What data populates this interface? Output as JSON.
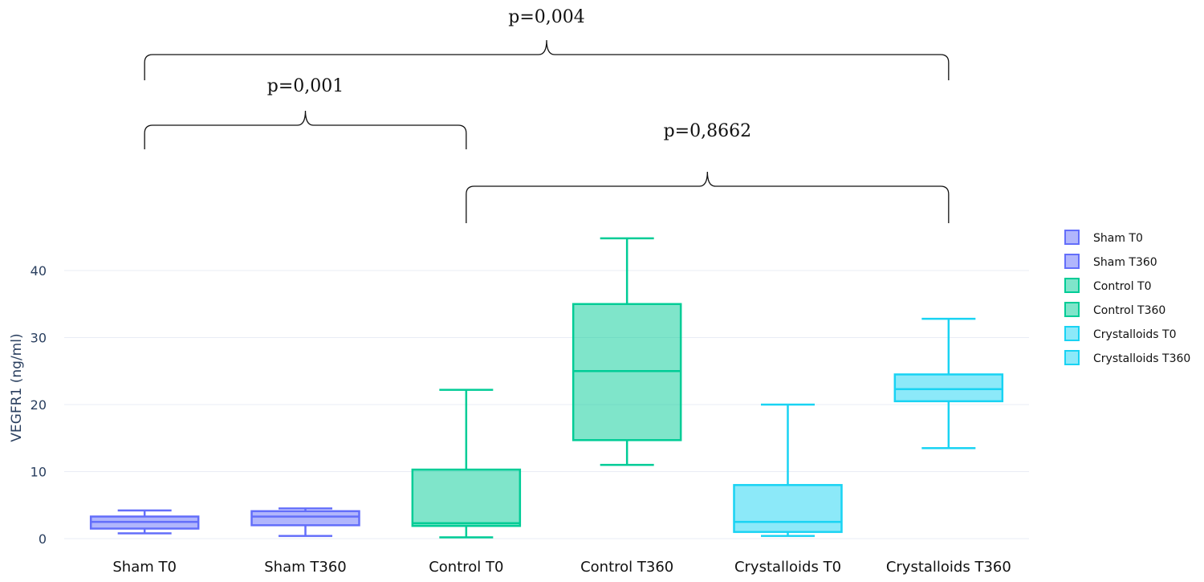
{
  "chart_data": {
    "type": "box",
    "ylabel": "VEGFR1 (ng/ml)",
    "ylim": [
      0,
      45
    ],
    "yticks": [
      0,
      10,
      20,
      30,
      40
    ],
    "grid": true,
    "legend_position": "right",
    "categories": [
      "Sham T0",
      "Sham T360",
      "Control T0",
      "Control T360",
      "Crystalloids T0",
      "Crystalloids T360"
    ],
    "series": [
      {
        "name": "Sham T0",
        "color": "#636efa",
        "min": 0.8,
        "q1": 1.5,
        "median": 2.5,
        "q3": 3.3,
        "max": 4.2
      },
      {
        "name": "Sham T360",
        "color": "#636efa",
        "min": 0.4,
        "q1": 2.0,
        "median": 3.3,
        "q3": 4.1,
        "max": 4.5
      },
      {
        "name": "Control T0",
        "color": "#00cc96",
        "min": 0.2,
        "q1": 1.9,
        "median": 2.3,
        "q3": 10.3,
        "max": 22.2
      },
      {
        "name": "Control T360",
        "color": "#00cc96",
        "min": 11.0,
        "q1": 14.7,
        "median": 25.0,
        "q3": 35.0,
        "max": 44.8
      },
      {
        "name": "Crystalloids T0",
        "color": "#19d3f3",
        "min": 0.4,
        "q1": 1.0,
        "median": 2.5,
        "q3": 8.0,
        "max": 20.0
      },
      {
        "name": "Crystalloids T360",
        "color": "#19d3f3",
        "min": 13.5,
        "q1": 20.5,
        "median": 22.3,
        "q3": 24.5,
        "max": 32.8
      }
    ],
    "annotations": [
      {
        "text": "p=0,004",
        "from": 1,
        "to": 6
      },
      {
        "text": "p=0,001",
        "from": 1,
        "to": 3
      },
      {
        "text": "p=0,8662",
        "from": 3,
        "to": 6
      }
    ]
  }
}
